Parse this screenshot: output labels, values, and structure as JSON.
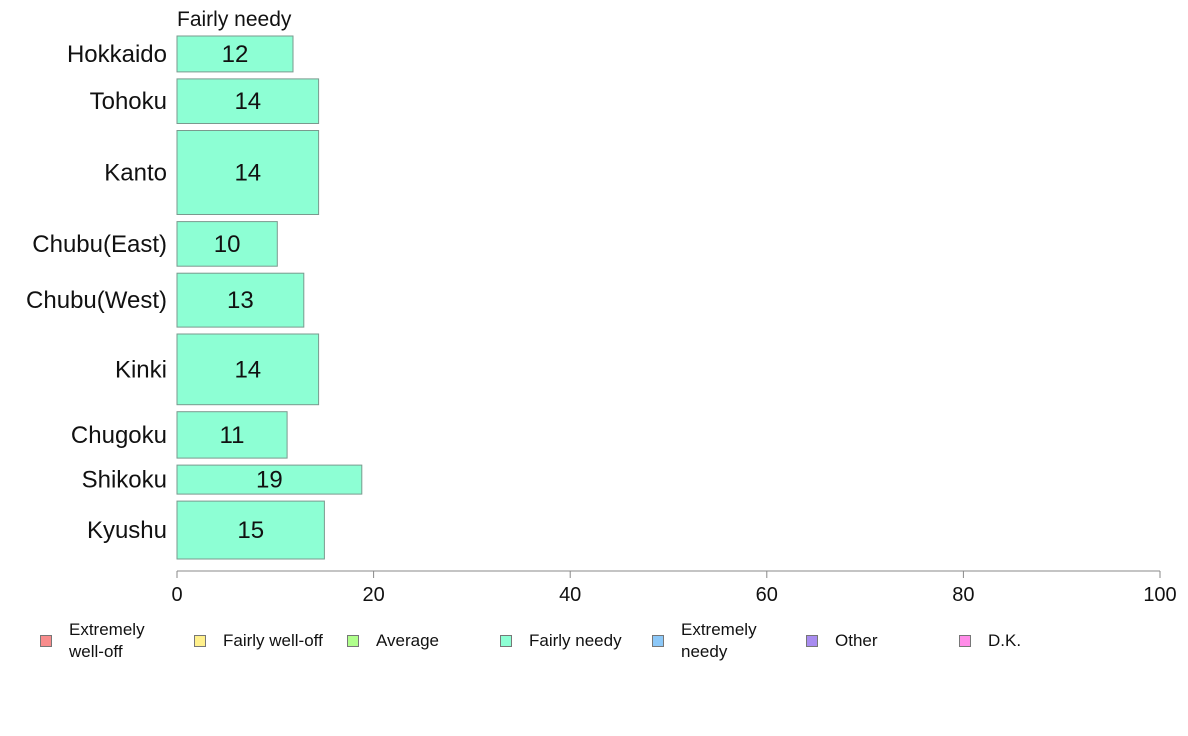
{
  "chart_data": {
    "type": "bar",
    "orientation": "horizontal",
    "panel_title": "Fairly needy",
    "categories": [
      "Hokkaido",
      "Tohoku",
      "Kanto",
      "Chubu(East)",
      "Chubu(West)",
      "Kinki",
      "Chugoku",
      "Shikoku",
      "Kyushu"
    ],
    "values": [
      12,
      14,
      14,
      10,
      13,
      14,
      11,
      19,
      15
    ],
    "plotted_values": [
      11.8,
      14.4,
      14.4,
      10.2,
      12.9,
      14.4,
      11.2,
      18.8,
      15.0
    ],
    "relative_sample_size": [
      0.62,
      0.77,
      1.45,
      0.77,
      0.93,
      1.22,
      0.8,
      0.5,
      1.0
    ],
    "xlim": [
      0,
      100
    ],
    "xticks": [
      "0",
      "20",
      "40",
      "60",
      "80",
      "100"
    ],
    "bar_color": "#8dffd4",
    "bar_edge_color": "#7a9a8e",
    "legend": {
      "placement": "bottom",
      "items": [
        {
          "label": "Extremely\nwell-off",
          "color": "#f88c8c"
        },
        {
          "label": "Fairly well-off",
          "color": "#fff08c"
        },
        {
          "label": "Average",
          "color": "#b0ff8c"
        },
        {
          "label": "Fairly needy",
          "color": "#8dffd4"
        },
        {
          "label": "Extremely\nneedy",
          "color": "#8cc8f8"
        },
        {
          "label": "Other",
          "color": "#a88cf0"
        },
        {
          "label": "D.K.",
          "color": "#ff8ce8"
        }
      ]
    }
  }
}
